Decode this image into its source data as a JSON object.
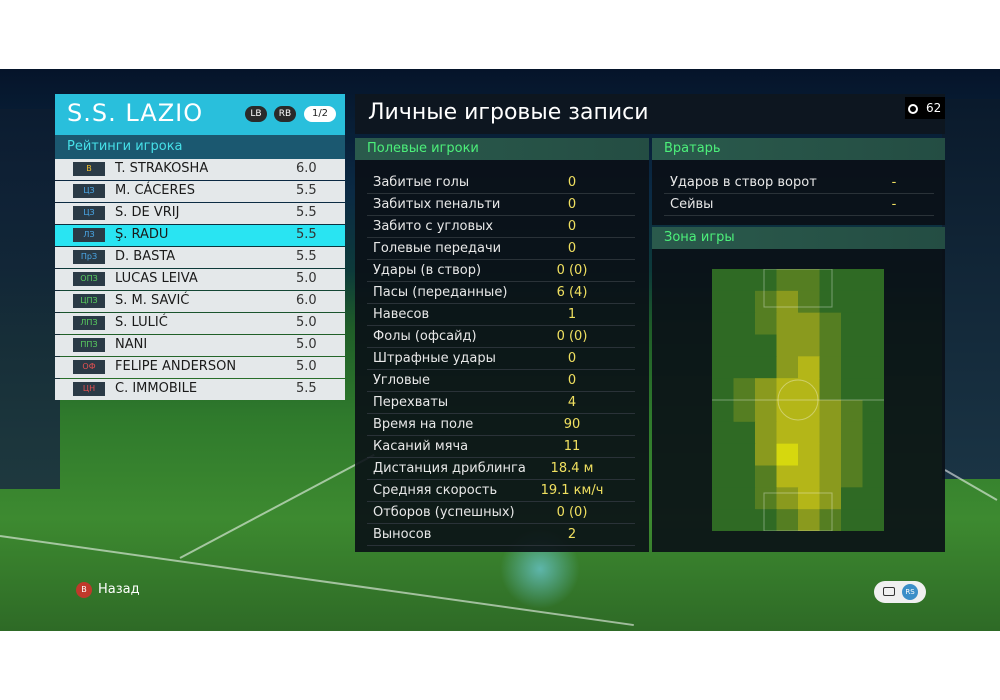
{
  "team": {
    "name": "S.S. LAZIO",
    "lb": "LB",
    "rb": "RB",
    "page": "1/2"
  },
  "ratings_title": "Рейтинги игрока",
  "players": [
    {
      "pos": "В",
      "pos_color": "#f0c030",
      "name": "T. STRAKOSHA",
      "rating": "6.0",
      "selected": false
    },
    {
      "pos": "ЦЗ",
      "pos_color": "#4aa8e8",
      "name": "M. CÁCERES",
      "rating": "5.5",
      "selected": false
    },
    {
      "pos": "ЦЗ",
      "pos_color": "#4aa8e8",
      "name": "S. DE VRIJ",
      "rating": "5.5",
      "selected": false
    },
    {
      "pos": "ЛЗ",
      "pos_color": "#4aa8e8",
      "name": "Ş. RADU",
      "rating": "5.5",
      "selected": true
    },
    {
      "pos": "ПрЗ",
      "pos_color": "#4aa8e8",
      "name": "D. BASTA",
      "rating": "5.5",
      "selected": false
    },
    {
      "pos": "ОПЗ",
      "pos_color": "#5ad060",
      "name": "LUCAS LEIVA",
      "rating": "5.0",
      "selected": false
    },
    {
      "pos": "ЦПЗ",
      "pos_color": "#5ad060",
      "name": "S. M. SAVIĆ",
      "rating": "6.0",
      "selected": false
    },
    {
      "pos": "ЛПЗ",
      "pos_color": "#5ad060",
      "name": "S. LULIĆ",
      "rating": "5.0",
      "selected": false
    },
    {
      "pos": "ППЗ",
      "pos_color": "#5ad060",
      "name": "NANI",
      "rating": "5.0",
      "selected": false
    },
    {
      "pos": "ОФ",
      "pos_color": "#e85050",
      "name": "FELIPE ANDERSON",
      "rating": "5.0",
      "selected": false
    },
    {
      "pos": "ЦН",
      "pos_color": "#e85050",
      "name": "C. IMMOBILE",
      "rating": "5.5",
      "selected": false
    }
  ],
  "main_title": "Личные игровые записи",
  "timer": "62",
  "field_section": "Полевые игроки",
  "field_stats": [
    {
      "label": "Забитые голы",
      "value": "0"
    },
    {
      "label": "Забитых пенальти",
      "value": "0"
    },
    {
      "label": "Забито с угловых",
      "value": "0"
    },
    {
      "label": "Голевые передачи",
      "value": "0"
    },
    {
      "label": "Удары (в створ)",
      "value": "0 (0)"
    },
    {
      "label": "Пасы (переданные)",
      "value": "6 (4)"
    },
    {
      "label": "Навесов",
      "value": "1"
    },
    {
      "label": "Фолы (офсайд)",
      "value": "0 (0)"
    },
    {
      "label": "Штрафные удары",
      "value": "0"
    },
    {
      "label": "Угловые",
      "value": "0"
    },
    {
      "label": "Перехваты",
      "value": "4"
    },
    {
      "label": "Время на поле",
      "value": "90"
    },
    {
      "label": "Касаний мяча",
      "value": "11"
    },
    {
      "label": "Дистанция дриблинга",
      "value": "18.4 м"
    },
    {
      "label": "Средняя скорость",
      "value": "19.1 км/ч"
    },
    {
      "label": "Отборов (успешных)",
      "value": "0 (0)"
    },
    {
      "label": "Выносов",
      "value": "2"
    }
  ],
  "gk_section": "Вратарь",
  "gk_stats": [
    {
      "label": "Ударов в створ ворот",
      "value": "-"
    },
    {
      "label": "Сейвы",
      "value": "-"
    }
  ],
  "zone_section": "Зона игры",
  "heatmap": {
    "cols": 8,
    "rows": 12,
    "intensity": [
      [
        0,
        0,
        0,
        1,
        1,
        0,
        0,
        0
      ],
      [
        0,
        0,
        1,
        2,
        1,
        0,
        0,
        0
      ],
      [
        0,
        0,
        1,
        2,
        2,
        1,
        0,
        0
      ],
      [
        0,
        0,
        0,
        2,
        2,
        1,
        0,
        0
      ],
      [
        0,
        0,
        0,
        2,
        3,
        1,
        0,
        0
      ],
      [
        0,
        1,
        2,
        3,
        3,
        1,
        0,
        0
      ],
      [
        0,
        1,
        2,
        3,
        3,
        2,
        1,
        0
      ],
      [
        0,
        0,
        2,
        3,
        3,
        2,
        1,
        0
      ],
      [
        0,
        0,
        2,
        4,
        3,
        2,
        1,
        0
      ],
      [
        0,
        0,
        1,
        3,
        3,
        2,
        1,
        0
      ],
      [
        0,
        0,
        1,
        2,
        3,
        2,
        0,
        0
      ],
      [
        0,
        0,
        0,
        1,
        2,
        1,
        0,
        0
      ]
    ]
  },
  "back_button": "B",
  "back_label": "Назад",
  "rs_label": "RS"
}
